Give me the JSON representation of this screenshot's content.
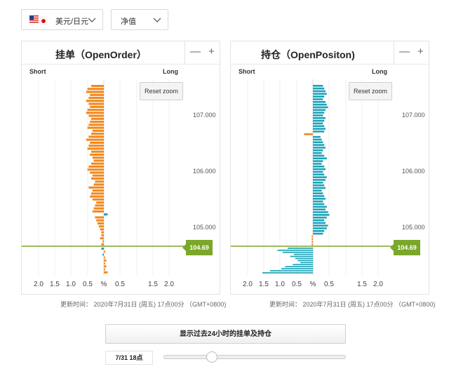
{
  "selectors": {
    "pair": "美元/日元",
    "mode": "净值"
  },
  "colors": {
    "order": "#f0891f",
    "position": "#1fa3b8",
    "neg": "#f0891f",
    "price": "#7ba72a"
  },
  "panels": [
    {
      "id": "order",
      "title": "挂单（OpenOrder）",
      "minus": "—",
      "plus": "+",
      "short": "Short",
      "long": "Long",
      "reset": "Reset zoom",
      "bars_above": [
        -10,
        -13,
        -14,
        -11,
        -12,
        -14,
        -12,
        -11,
        -13,
        -14,
        -12,
        -10,
        -11,
        -12,
        -13,
        -9,
        -10,
        -12,
        -14,
        -11,
        -12,
        -13,
        -10,
        -11,
        -9,
        -8,
        -10,
        -12,
        -13,
        -11,
        -9,
        -10,
        -7,
        -8,
        -12,
        -9,
        -10,
        -11,
        -9,
        -6,
        -7,
        -8,
        -9,
        3,
        -7,
        -6,
        -5,
        -4,
        -3,
        -2,
        -2,
        -3,
        -1,
        -2
      ],
      "bars_below": [
        -2,
        1,
        -1,
        1,
        2,
        1,
        2,
        1,
        3
      ],
      "extra_right": [
        3
      ]
    },
    {
      "id": "position",
      "title": "持仓（OpenPositon)",
      "minus": "—",
      "plus": "+",
      "short": "Short",
      "long": "Long",
      "reset": "Reset zoom",
      "bars_above": [
        8,
        9,
        10,
        11,
        9,
        8,
        10,
        11,
        12,
        10,
        9,
        8,
        10,
        9,
        8,
        9,
        10,
        9,
        -7,
        6,
        7,
        8,
        9,
        10,
        8,
        7,
        9,
        11,
        8,
        7,
        9,
        10,
        8,
        9,
        11,
        10,
        8,
        9,
        10,
        7,
        8,
        9,
        10,
        8,
        9,
        11,
        10,
        12,
        13,
        11,
        9,
        10,
        12,
        11,
        9,
        8,
        -1,
        -1,
        -1,
        -1
      ],
      "bars_below": [
        -20,
        -28,
        -24,
        -15,
        -18,
        -14,
        -12,
        -10,
        -16,
        -22,
        -25,
        -34,
        -40
      ]
    }
  ],
  "y_labels": [
    "107.000",
    "106.000",
    "105.000"
  ],
  "current_price": "104.69",
  "x_labels": [
    "2.0",
    "1.5",
    "1.0",
    "0.5",
    "%",
    "0.5",
    "1.5",
    "2.0"
  ],
  "update_text": "更新时间： 2020年7月31日 (周五) 17点00分 （GMT+0800)",
  "show_24h_button": "显示过去24小时的挂单及持仓",
  "current_time": "7/31 18点"
}
